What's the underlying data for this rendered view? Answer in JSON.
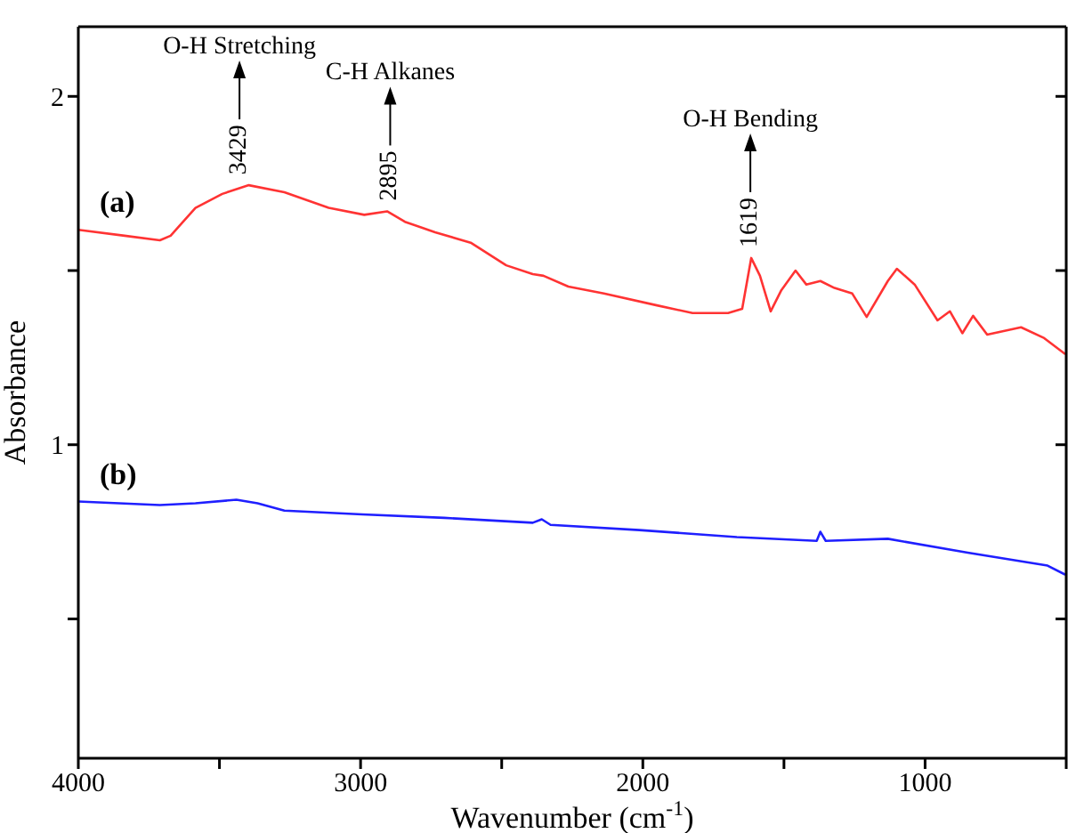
{
  "chart_data": {
    "type": "line",
    "xlabel": "Wavenumber (cm$^{-1}$)",
    "ylabel": "Absorbance",
    "xlim": [
      4000,
      500
    ],
    "xticks": [
      4000,
      {
        "value": 3500,
        "label": null
      },
      3000,
      {
        "value": 2500,
        "label": null
      },
      2000,
      {
        "value": 1500,
        "label": null
      },
      1000,
      {
        "value": 500,
        "label": null
      }
    ],
    "ylim": [
      0.1,
      2.2
    ],
    "yticks": [
      {
        "value": 0.5,
        "label": null
      },
      1,
      {
        "value": 1.5,
        "label": null
      },
      2
    ],
    "grid": false,
    "legend": false,
    "marker": "none",
    "line_style": "solid",
    "annotations": [
      "O-H Stretching",
      "C-H Alkanes",
      "O-H Bending",
      {
        "text": "3429",
        "x": 3429,
        "y": 1.745
      },
      {
        "text": "2895",
        "x": 2895,
        "y": 1.67
      },
      {
        "text": "1619",
        "x": 1619,
        "y": 1.536
      }
    ],
    "series": [
      {
        "name": "(a)",
        "color": "#ff3333",
        "x": [
          4000,
          3836,
          3711,
          3673,
          3585,
          3490,
          3396,
          3270,
          3113,
          2987,
          2906,
          2843,
          2736,
          2610,
          2484,
          2390,
          2352,
          2264,
          2138,
          1950,
          1824,
          1698,
          1648,
          1616,
          1585,
          1547,
          1509,
          1459,
          1421,
          1371,
          1321,
          1258,
          1207,
          1132,
          1100,
          1037,
          956,
          912,
          868,
          830,
          780,
          660,
          578,
          503
        ],
        "values": [
          1.617,
          1.6,
          1.587,
          1.6,
          1.68,
          1.72,
          1.745,
          1.725,
          1.68,
          1.66,
          1.67,
          1.64,
          1.61,
          1.58,
          1.515,
          1.49,
          1.485,
          1.454,
          1.434,
          1.4,
          1.378,
          1.378,
          1.39,
          1.536,
          1.485,
          1.383,
          1.444,
          1.5,
          1.46,
          1.47,
          1.45,
          1.434,
          1.367,
          1.47,
          1.505,
          1.46,
          1.357,
          1.383,
          1.32,
          1.37,
          1.316,
          1.337,
          1.306,
          1.26
        ]
      },
      {
        "name": "(b)",
        "color": "#1f1fff",
        "x": [
          4000,
          3711,
          3585,
          3440,
          3365,
          3270,
          2994,
          2704,
          2390,
          2358,
          2327,
          2012,
          1667,
          1384,
          1371,
          1352,
          1132,
          849,
          566,
          503
        ],
        "values": [
          0.837,
          0.827,
          0.832,
          0.842,
          0.832,
          0.811,
          0.8,
          0.79,
          0.776,
          0.786,
          0.77,
          0.755,
          0.735,
          0.724,
          0.75,
          0.724,
          0.73,
          0.69,
          0.653,
          0.627
        ]
      }
    ]
  }
}
